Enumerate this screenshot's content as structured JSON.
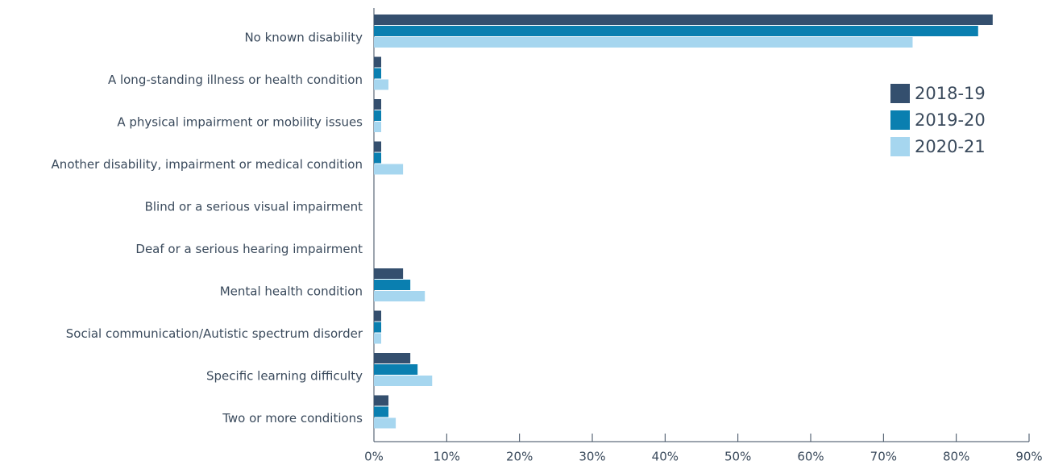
{
  "chart_data": {
    "type": "hbar",
    "categories": [
      "No known disability",
      "A long-standing illness or health condition",
      "A physical impairment or mobility issues",
      "Another disability, impairment or medical condition",
      "Blind or a serious visual impairment",
      "Deaf or a serious hearing impairment",
      "Mental health condition",
      "Social communication/Autistic spectrum disorder",
      "Specific learning difficulty",
      "Two or more conditions"
    ],
    "series": [
      {
        "name": "2018-19",
        "color": "#344f6e",
        "values": [
          85,
          1,
          1,
          1,
          0,
          0,
          4,
          1,
          5,
          2
        ]
      },
      {
        "name": "2019-20",
        "color": "#0a7fb0",
        "values": [
          83,
          1,
          1,
          1,
          0,
          0,
          5,
          1,
          6,
          2
        ]
      },
      {
        "name": "2020-21",
        "color": "#a6d6ef",
        "values": [
          74,
          2,
          1,
          4,
          0,
          0,
          7,
          1,
          8,
          3
        ]
      }
    ],
    "xlim": [
      0,
      90
    ],
    "xticks": [
      {
        "value": 0,
        "label": "0%"
      },
      {
        "value": 10,
        "label": "10%"
      },
      {
        "value": 20,
        "label": "20%"
      },
      {
        "value": 30,
        "label": "30%"
      },
      {
        "value": 40,
        "label": "40%"
      },
      {
        "value": 50,
        "label": "50%"
      },
      {
        "value": 60,
        "label": "60%"
      },
      {
        "value": 70,
        "label": "70%"
      },
      {
        "value": 80,
        "label": "80%"
      },
      {
        "value": 90,
        "label": "90%"
      }
    ],
    "legend": "upper right"
  }
}
